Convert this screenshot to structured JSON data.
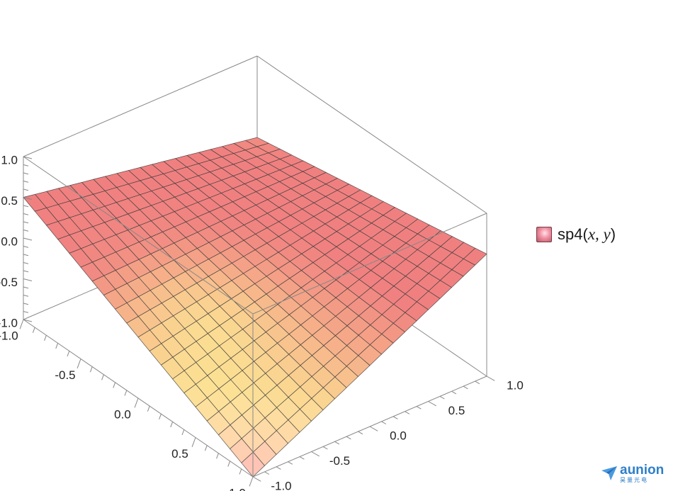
{
  "chart_data": {
    "type": "surface3d",
    "function": "sp4(x, y)",
    "x_range": [
      -1.0,
      1.0
    ],
    "y_range": [
      -1.0,
      1.0
    ],
    "z_range": [
      -1.0,
      1.0
    ],
    "x_ticks": [
      "-1.0",
      "-0.5",
      "0.0",
      "0.5",
      "1.0"
    ],
    "y_ticks": [
      "-1.0",
      "-0.5",
      "0.0",
      "0.5",
      "1.0"
    ],
    "z_ticks": [
      "-1.0",
      "-0.5",
      "0.0",
      "0.5",
      "1.0"
    ],
    "grid_lines_per_axis": 21,
    "corner_values": {
      "xneg_yneg": 0.5,
      "xneg_ypos": 0.0,
      "xpos_ypos": 0.5,
      "xpos_yneg": -1.0
    },
    "colors": {
      "high": "#f08080",
      "mid": "#ffff99",
      "low": "#ffb0c0",
      "mesh": "#3a3a3a",
      "box": "#888888"
    },
    "legend": {
      "label": "sp4",
      "args": "x, y",
      "position": "right"
    }
  },
  "watermark": {
    "name": "aunion",
    "sub": "昊量光电"
  }
}
